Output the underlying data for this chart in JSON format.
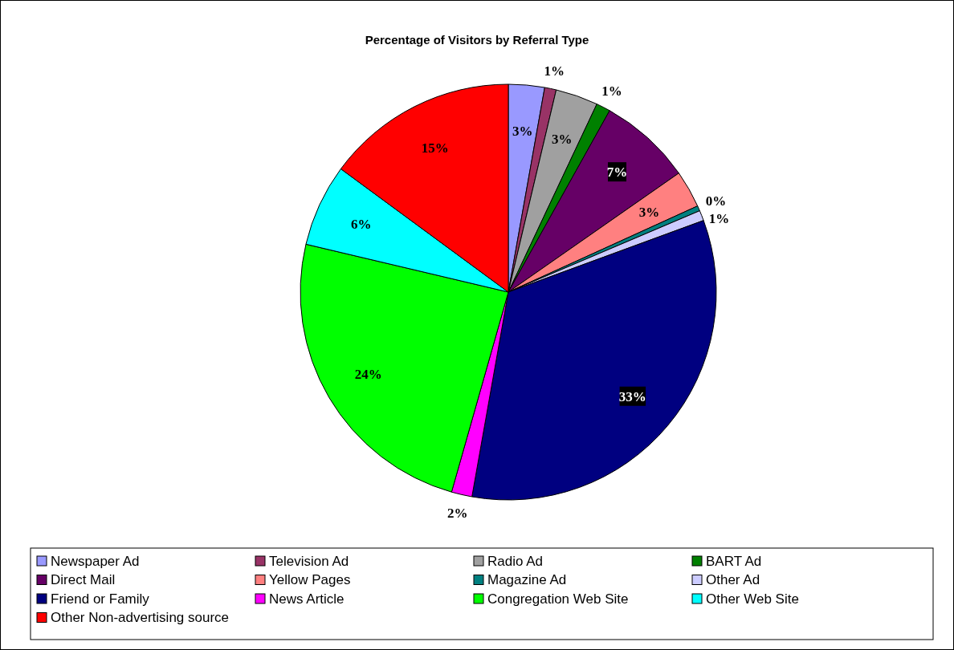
{
  "chart_data": {
    "type": "pie",
    "title": "Percentage of Visitors by Referral Type",
    "categories": [
      "Newspaper Ad",
      "Television Ad",
      "Radio Ad",
      "BART Ad",
      "Direct Mail",
      "Yellow Pages",
      "Magazine Ad",
      "Other Ad",
      "Friend or Family",
      "News Article",
      "Congregation Web Site",
      "Other Web Site",
      "Other Non-advertising source"
    ],
    "values": [
      2.8,
      0.9,
      3.3,
      1.1,
      7.2,
      2.9,
      0.4,
      0.8,
      33.4,
      1.6,
      24.3,
      6.4,
      14.9
    ],
    "value_labels": [
      "3%",
      "1%",
      "3%",
      "1%",
      "7%",
      "3%",
      "0%",
      "1%",
      "33%",
      "2%",
      "24%",
      "6%",
      "15%"
    ],
    "colors": [
      "#9999ff",
      "#993366",
      "#a0a0a0",
      "#008000",
      "#660066",
      "#ff8080",
      "#008080",
      "#ccccff",
      "#000080",
      "#ff00ff",
      "#00ff00",
      "#00ffff",
      "#ff0000"
    ],
    "legend": "bottom"
  }
}
